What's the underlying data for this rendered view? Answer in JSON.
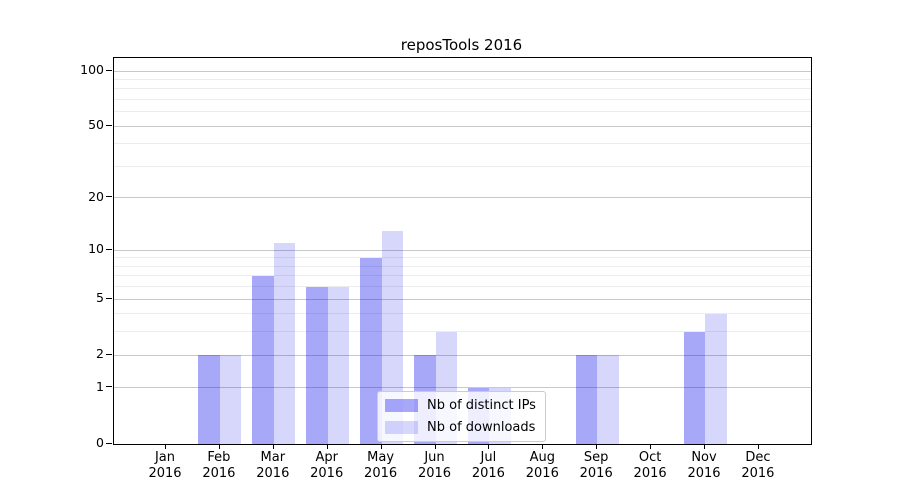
{
  "chart_data": {
    "type": "bar",
    "title": "reposTools 2016",
    "categories": [
      "Jan",
      "Feb",
      "Mar",
      "Apr",
      "May",
      "Jun",
      "Jul",
      "Aug",
      "Sep",
      "Oct",
      "Nov",
      "Dec"
    ],
    "x_year_label": "2016",
    "series": [
      {
        "name": "Nb of distinct IPs",
        "color": "rgba(0,0,238,0.34)",
        "values": [
          0,
          2,
          7,
          6,
          9,
          2,
          1,
          0,
          2,
          0,
          3,
          0
        ]
      },
      {
        "name": "Nb of downloads",
        "color": "rgba(0,0,238,0.155)",
        "values": [
          0,
          2,
          11,
          6,
          13,
          3,
          1,
          0,
          2,
          0,
          4,
          0
        ]
      }
    ],
    "y_axis": {
      "scale": "log1p",
      "tick_values": [
        0,
        1,
        2,
        5,
        10,
        20,
        50,
        100
      ],
      "minor_grid_values": [
        3,
        4,
        6,
        7,
        8,
        9,
        30,
        40,
        60,
        70,
        80,
        90
      ]
    },
    "grid": {
      "major_color": "#c8c8c8",
      "minor_color": "#ececec"
    },
    "axis_color": "#000000",
    "legend_position": "lower-center"
  }
}
